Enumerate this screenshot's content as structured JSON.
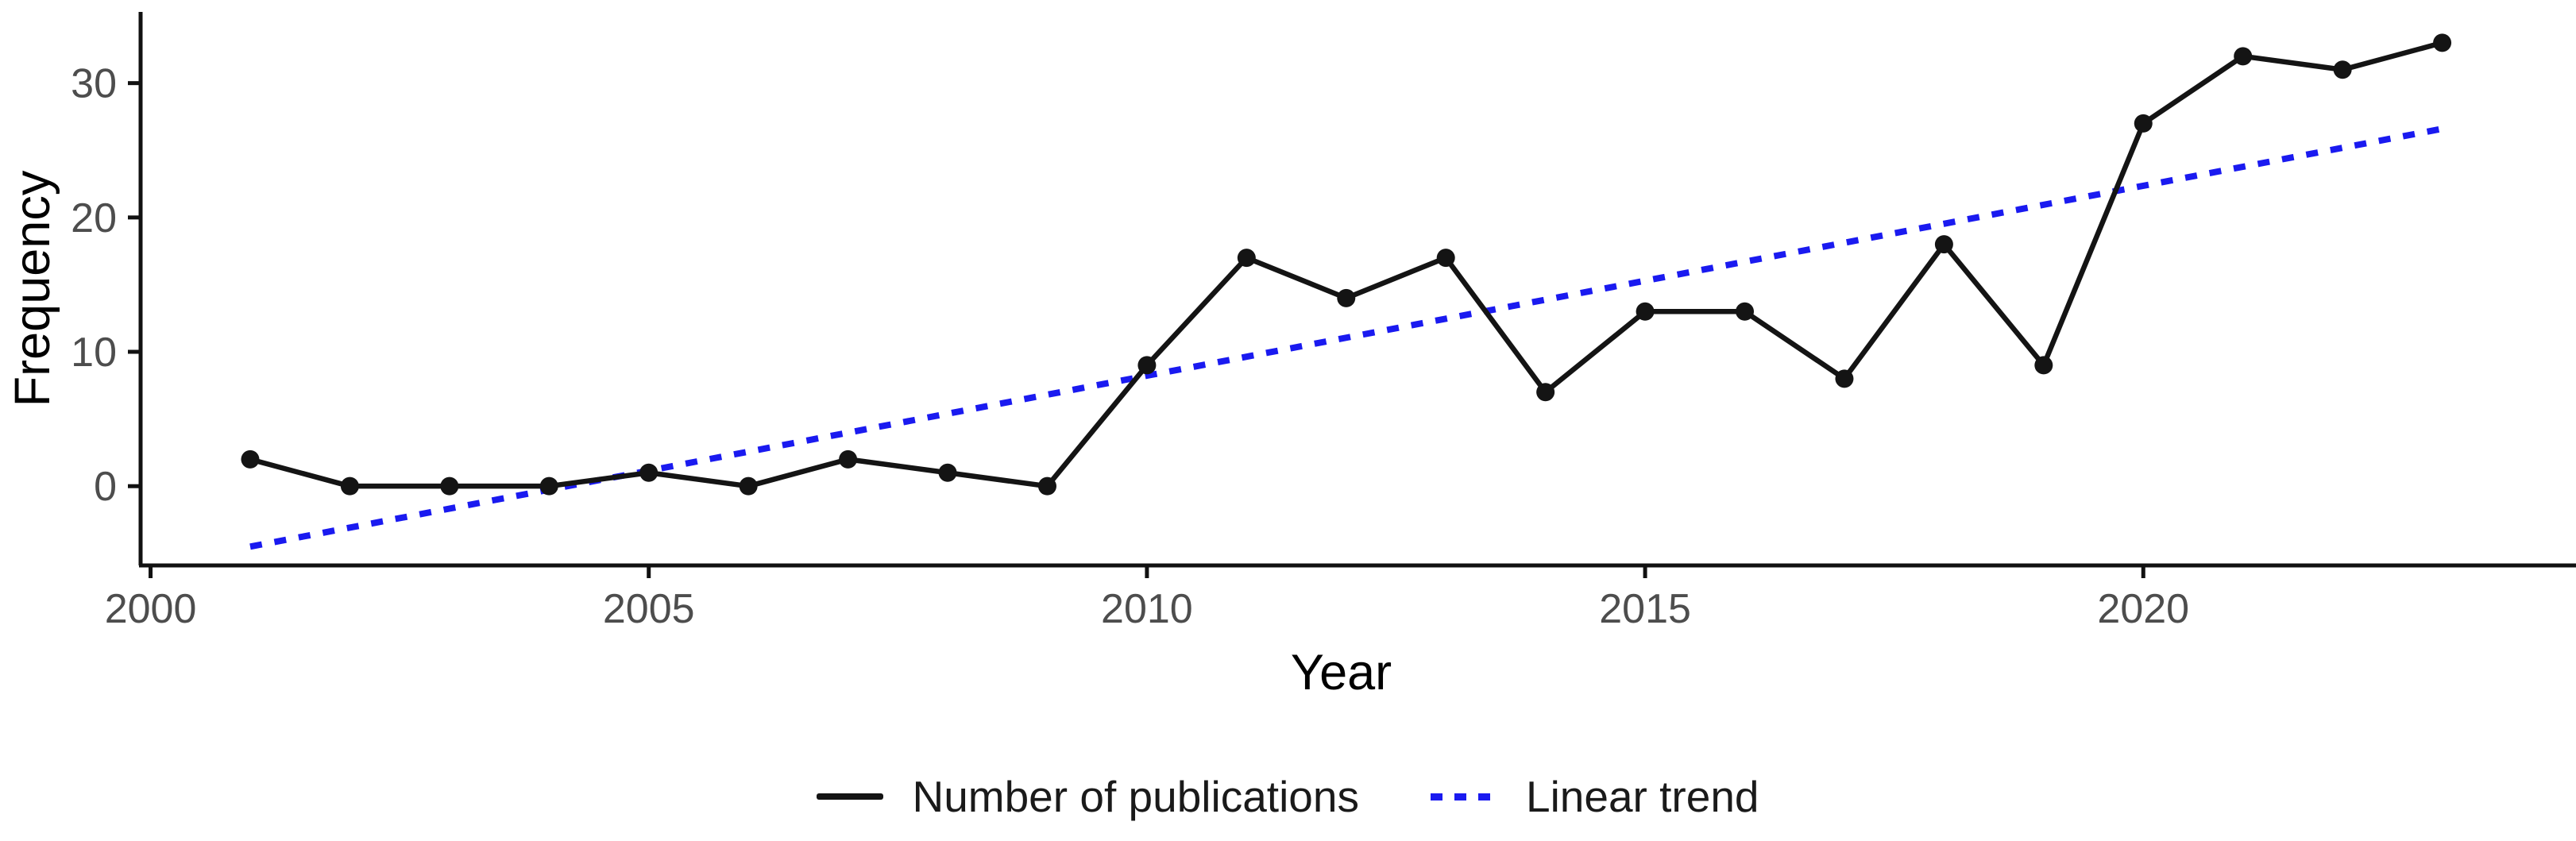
{
  "figure": {
    "background": "#ffffff"
  },
  "axes": {
    "x_label": "Year",
    "y_label": "Frequency",
    "axis_color": "#111111",
    "tick_label_color": "#4d4d4d",
    "x_tick_labels": [
      "2000",
      "2005",
      "2010",
      "2015",
      "2020"
    ],
    "y_tick_labels": [
      "0",
      "10",
      "20",
      "30"
    ]
  },
  "legend": {
    "items": [
      {
        "label": "Number of publications",
        "swatch": "solid-black-line",
        "color": "#141414"
      },
      {
        "label": "Linear trend",
        "swatch": "blue-dotted-line",
        "color": "#1a1af0"
      }
    ]
  },
  "chart_data": {
    "type": "line",
    "title": "",
    "xlabel": "Year",
    "ylabel": "Frequency",
    "x": [
      2001,
      2002,
      2003,
      2004,
      2005,
      2006,
      2007,
      2008,
      2009,
      2010,
      2011,
      2012,
      2013,
      2014,
      2015,
      2016,
      2017,
      2018,
      2019,
      2020,
      2021,
      2022,
      2023
    ],
    "series": [
      {
        "name": "Number of publications",
        "type": "line-with-points",
        "color": "#141414",
        "values": [
          2,
          0,
          0,
          0,
          1,
          0,
          2,
          1,
          0,
          9,
          17,
          14,
          17,
          7,
          13,
          13,
          8,
          18,
          9,
          27,
          32,
          31,
          33
        ]
      },
      {
        "name": "Linear trend",
        "type": "dotted-trend-line",
        "color": "#1a1af0",
        "endpoints": {
          "x1": 2001,
          "y1": -4.5,
          "x2": 2023,
          "y2": 26.6
        }
      }
    ],
    "x_ticks": [
      2000,
      2005,
      2010,
      2015,
      2020
    ],
    "y_ticks": [
      0,
      10,
      20,
      30
    ],
    "xlim": [
      1999.9,
      2024.0
    ],
    "ylim": [
      -5.9,
      35.3
    ],
    "grid": false,
    "legend_position": "bottom"
  }
}
